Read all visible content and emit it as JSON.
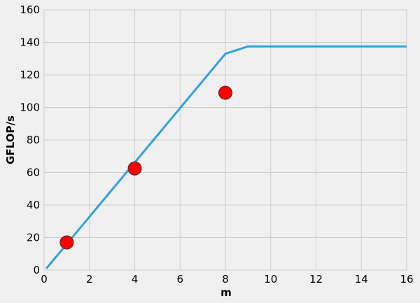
{
  "chart_data": {
    "type": "line",
    "xlabel": "m",
    "ylabel": "GFLOP/s",
    "xlim": [
      0,
      16
    ],
    "ylim": [
      0,
      160
    ],
    "xticks": [
      0,
      2,
      4,
      6,
      8,
      10,
      12,
      14,
      16
    ],
    "yticks": [
      0,
      20,
      40,
      60,
      80,
      100,
      120,
      140,
      160
    ],
    "grid": true,
    "background": "#f0f0f0",
    "series": [
      {
        "type": "line",
        "color": "#30a2da",
        "points": [
          [
            0.1,
            1
          ],
          [
            8,
            133
          ],
          [
            9,
            137.5
          ],
          [
            16,
            137.5
          ]
        ]
      },
      {
        "type": "scatter",
        "color": "#ff0000",
        "edge_color": "#333333",
        "points": [
          [
            1,
            17
          ],
          [
            4,
            62.5
          ],
          [
            8,
            109
          ]
        ]
      }
    ]
  }
}
